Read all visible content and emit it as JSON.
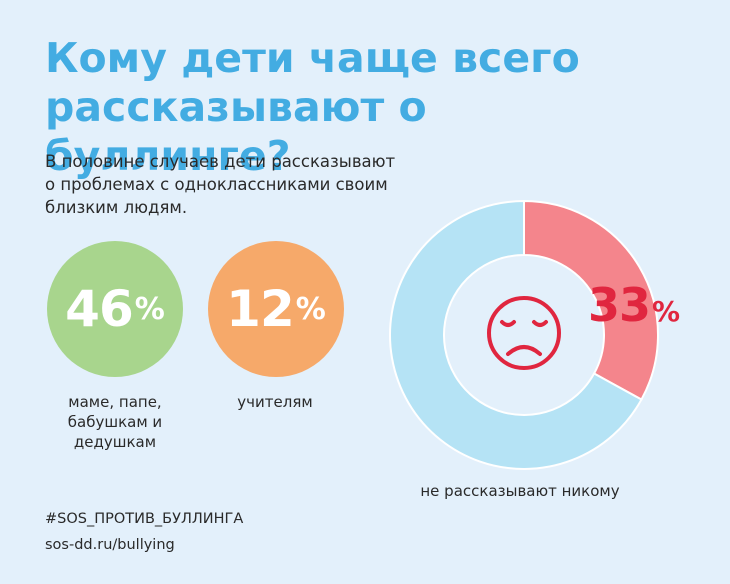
{
  "title": {
    "line1": "Кому дети чаще всего",
    "line2": "рассказывают о буллинге?"
  },
  "intro": {
    "line1": "В половине случаев дети рассказывают",
    "line2": "о проблемах с одноклассниками своим",
    "line3": "близким людям."
  },
  "stats": {
    "parents": {
      "value": "46",
      "unit": "%",
      "label_line1": "маме, папе,",
      "label_line2": "бабушкам и",
      "label_line3": "дедушкам",
      "color": "#a8d58d"
    },
    "teachers": {
      "value": "12",
      "unit": "%",
      "label_line1": "учителям",
      "color": "#f6a96a"
    }
  },
  "chart_data": {
    "type": "pie",
    "variant": "donut",
    "slices": [
      {
        "label": "не рассказывают никому",
        "value": 33,
        "color": "#f4858c"
      },
      {
        "value": 67,
        "color": "#b5e3f5"
      }
    ],
    "center_icon": "sad-face-icon",
    "display_value": "33",
    "display_unit": "%",
    "caption": "не рассказывают никому"
  },
  "colors": {
    "title": "#43ace2",
    "background": "#e3f0fb",
    "accent_red": "#e0263f"
  },
  "footer": {
    "hashtag": "#SOS_ПРОТИВ_БУЛЛИНГА",
    "link": "sos-dd.ru/bullying"
  }
}
